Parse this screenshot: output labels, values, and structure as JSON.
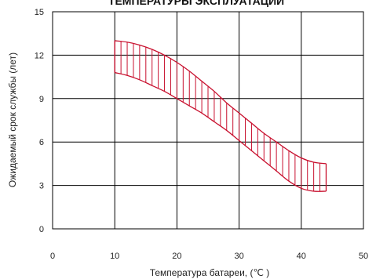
{
  "chart_data": {
    "type": "area",
    "title": "ТЕМПЕРАТУРЫ ЭКСПЛУАТАЦИИ",
    "xlabel": "Температура батареи, (℃ )",
    "ylabel": "Ожидаемый срок службы (лет)",
    "xlim": [
      0,
      50
    ],
    "ylim": [
      0,
      15
    ],
    "x_ticks": [
      "0",
      "10",
      "20",
      "30",
      "40",
      "50"
    ],
    "y_ticks": [
      "0",
      "3",
      "6",
      "9",
      "12",
      "15"
    ],
    "grid": true,
    "legend": "none",
    "band": {
      "upper": {
        "x": [
          10,
          12,
          14,
          16,
          18,
          20,
          22,
          24,
          26,
          28,
          30,
          32,
          34,
          36,
          38,
          40,
          42,
          44
        ],
        "y": [
          13.0,
          12.9,
          12.7,
          12.4,
          12.0,
          11.5,
          10.9,
          10.2,
          9.5,
          8.7,
          8.0,
          7.3,
          6.6,
          6.0,
          5.4,
          4.9,
          4.6,
          4.5
        ]
      },
      "lower": {
        "x": [
          10,
          12,
          14,
          16,
          18,
          20,
          22,
          24,
          26,
          28,
          30,
          32,
          34,
          36,
          38,
          40,
          42,
          44
        ],
        "y": [
          10.8,
          10.6,
          10.3,
          9.9,
          9.5,
          9.0,
          8.5,
          8.0,
          7.4,
          6.8,
          6.1,
          5.4,
          4.7,
          4.0,
          3.3,
          2.8,
          2.6,
          2.6
        ]
      },
      "hatch_step": 1
    },
    "colors": {
      "band": "#c8102e",
      "grid": "#000000",
      "axis": "#000000"
    }
  }
}
